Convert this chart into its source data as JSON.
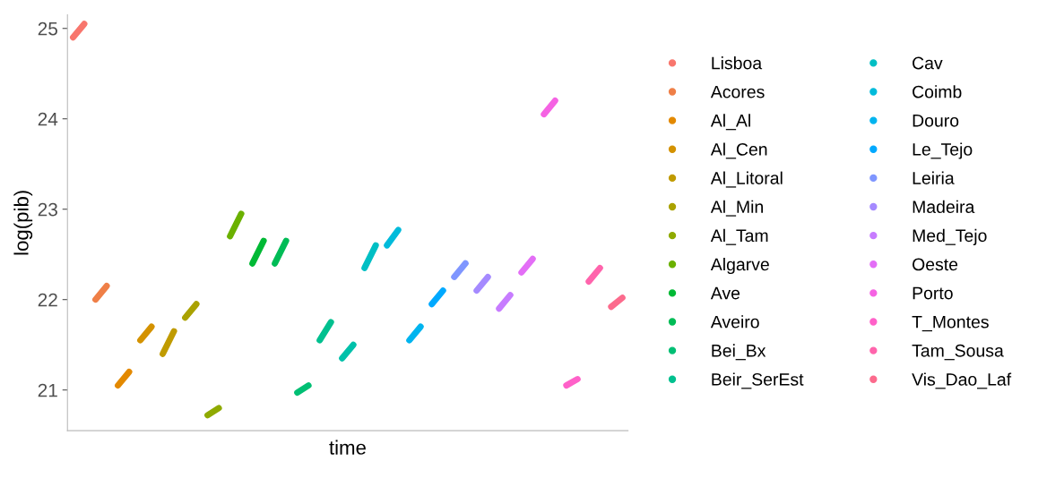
{
  "chart_data": {
    "type": "line",
    "xlabel": "time",
    "ylabel": "log(pib)",
    "ylim": [
      20.55,
      25.15
    ],
    "yticks": [
      21,
      22,
      23,
      24,
      25
    ],
    "tick_labels": "y",
    "grid": false,
    "legend": "right",
    "categories": [
      null,
      null,
      null,
      null,
      null,
      null,
      null,
      null,
      null,
      null,
      null,
      null,
      null,
      null,
      null,
      null,
      null,
      null,
      null,
      null,
      null,
      null,
      null,
      null,
      null,
      null,
      null,
      null,
      null,
      null,
      null,
      null,
      null,
      null,
      null,
      null,
      null,
      null,
      null,
      null,
      null,
      null,
      null,
      null,
      null,
      null,
      null,
      null,
      null,
      null
    ],
    "series": [
      {
        "name": "Lisboa",
        "color": "#f8766d",
        "values": [
          24.9,
          25.05,
          null,
          null,
          null,
          null,
          null,
          null,
          null,
          null,
          null,
          null,
          null,
          null,
          null,
          null,
          null,
          null,
          null,
          null,
          null,
          null,
          null,
          null,
          null,
          null,
          null,
          null,
          null,
          null,
          null,
          null,
          null,
          null,
          null,
          null,
          null,
          null,
          null,
          null,
          null,
          null,
          null,
          null,
          null,
          null,
          null,
          null,
          null,
          null
        ]
      },
      {
        "name": "Acores",
        "color": "#ef7f47",
        "values": [
          null,
          null,
          22.0,
          22.15,
          null,
          null,
          null,
          null,
          null,
          null,
          null,
          null,
          null,
          null,
          null,
          null,
          null,
          null,
          null,
          null,
          null,
          null,
          null,
          null,
          null,
          null,
          null,
          null,
          null,
          null,
          null,
          null,
          null,
          null,
          null,
          null,
          null,
          null,
          null,
          null,
          null,
          null,
          null,
          null,
          null,
          null,
          null,
          null,
          null,
          null
        ]
      },
      {
        "name": "Al_Al",
        "color": "#e38900",
        "values": [
          null,
          null,
          null,
          null,
          21.05,
          21.2,
          null,
          null,
          null,
          null,
          null,
          null,
          null,
          null,
          null,
          null,
          null,
          null,
          null,
          null,
          null,
          null,
          null,
          null,
          null,
          null,
          null,
          null,
          null,
          null,
          null,
          null,
          null,
          null,
          null,
          null,
          null,
          null,
          null,
          null,
          null,
          null,
          null,
          null,
          null,
          null,
          null,
          null,
          null,
          null
        ]
      },
      {
        "name": "Al_Cen",
        "color": "#d49200",
        "values": [
          null,
          null,
          null,
          null,
          null,
          null,
          21.55,
          21.7,
          null,
          null,
          null,
          null,
          null,
          null,
          null,
          null,
          null,
          null,
          null,
          null,
          null,
          null,
          null,
          null,
          null,
          null,
          null,
          null,
          null,
          null,
          null,
          null,
          null,
          null,
          null,
          null,
          null,
          null,
          null,
          null,
          null,
          null,
          null,
          null,
          null,
          null,
          null,
          null,
          null,
          null
        ]
      },
      {
        "name": "Al_Litoral",
        "color": "#c09b00",
        "values": [
          null,
          null,
          null,
          null,
          null,
          null,
          null,
          null,
          21.4,
          21.65,
          null,
          null,
          null,
          null,
          null,
          null,
          null,
          null,
          null,
          null,
          null,
          null,
          null,
          null,
          null,
          null,
          null,
          null,
          null,
          null,
          null,
          null,
          null,
          null,
          null,
          null,
          null,
          null,
          null,
          null,
          null,
          null,
          null,
          null,
          null,
          null,
          null,
          null,
          null,
          null
        ]
      },
      {
        "name": "Al_Min",
        "color": "#aaa200",
        "values": [
          null,
          null,
          null,
          null,
          null,
          null,
          null,
          null,
          null,
          null,
          21.8,
          21.95,
          null,
          null,
          null,
          null,
          null,
          null,
          null,
          null,
          null,
          null,
          null,
          null,
          null,
          null,
          null,
          null,
          null,
          null,
          null,
          null,
          null,
          null,
          null,
          null,
          null,
          null,
          null,
          null,
          null,
          null,
          null,
          null,
          null,
          null,
          null,
          null,
          null,
          null
        ]
      },
      {
        "name": "Al_Tam",
        "color": "#8faa00",
        "values": [
          null,
          null,
          null,
          null,
          null,
          null,
          null,
          null,
          null,
          null,
          null,
          null,
          20.72,
          20.8,
          null,
          null,
          null,
          null,
          null,
          null,
          null,
          null,
          null,
          null,
          null,
          null,
          null,
          null,
          null,
          null,
          null,
          null,
          null,
          null,
          null,
          null,
          null,
          null,
          null,
          null,
          null,
          null,
          null,
          null,
          null,
          null,
          null,
          null,
          null,
          null
        ]
      },
      {
        "name": "Algarve",
        "color": "#6bb100",
        "values": [
          null,
          null,
          null,
          null,
          null,
          null,
          null,
          null,
          null,
          null,
          null,
          null,
          null,
          null,
          22.7,
          22.95,
          null,
          null,
          null,
          null,
          null,
          null,
          null,
          null,
          null,
          null,
          null,
          null,
          null,
          null,
          null,
          null,
          null,
          null,
          null,
          null,
          null,
          null,
          null,
          null,
          null,
          null,
          null,
          null,
          null,
          null,
          null,
          null,
          null,
          null
        ]
      },
      {
        "name": "Ave",
        "color": "#00b935",
        "values": [
          null,
          null,
          null,
          null,
          null,
          null,
          null,
          null,
          null,
          null,
          null,
          null,
          null,
          null,
          null,
          null,
          22.4,
          22.65,
          null,
          null,
          null,
          null,
          null,
          null,
          null,
          null,
          null,
          null,
          null,
          null,
          null,
          null,
          null,
          null,
          null,
          null,
          null,
          null,
          null,
          null,
          null,
          null,
          null,
          null,
          null,
          null,
          null,
          null,
          null,
          null
        ]
      },
      {
        "name": "Aveiro",
        "color": "#00bc56",
        "values": [
          null,
          null,
          null,
          null,
          null,
          null,
          null,
          null,
          null,
          null,
          null,
          null,
          null,
          null,
          null,
          null,
          null,
          null,
          22.4,
          22.65,
          null,
          null,
          null,
          null,
          null,
          null,
          null,
          null,
          null,
          null,
          null,
          null,
          null,
          null,
          null,
          null,
          null,
          null,
          null,
          null,
          null,
          null,
          null,
          null,
          null,
          null,
          null,
          null,
          null,
          null
        ]
      },
      {
        "name": "Bei_Bx",
        "color": "#00bf74",
        "values": [
          null,
          null,
          null,
          null,
          null,
          null,
          null,
          null,
          null,
          null,
          null,
          null,
          null,
          null,
          null,
          null,
          null,
          null,
          null,
          null,
          20.97,
          21.05,
          null,
          null,
          null,
          null,
          null,
          null,
          null,
          null,
          null,
          null,
          null,
          null,
          null,
          null,
          null,
          null,
          null,
          null,
          null,
          null,
          null,
          null,
          null,
          null,
          null,
          null,
          null,
          null
        ]
      },
      {
        "name": "Beir_SerEst",
        "color": "#00c08f",
        "values": [
          null,
          null,
          null,
          null,
          null,
          null,
          null,
          null,
          null,
          null,
          null,
          null,
          null,
          null,
          null,
          null,
          null,
          null,
          null,
          null,
          null,
          null,
          21.55,
          21.75,
          null,
          null,
          null,
          null,
          null,
          null,
          null,
          null,
          null,
          null,
          null,
          null,
          null,
          null,
          null,
          null,
          null,
          null,
          null,
          null,
          null,
          null,
          null,
          null,
          null,
          null
        ]
      },
      {
        "color": "#00c1aa",
        "values": [
          null,
          null,
          null,
          null,
          null,
          null,
          null,
          null,
          null,
          null,
          null,
          null,
          null,
          null,
          null,
          null,
          null,
          null,
          null,
          null,
          null,
          null,
          null,
          null,
          21.35,
          21.5,
          null,
          null,
          null,
          null,
          null,
          null,
          null,
          null,
          null,
          null,
          null,
          null,
          null,
          null,
          null,
          null,
          null,
          null,
          null,
          null,
          null,
          null,
          null,
          null
        ]
      },
      {
        "name": "Cav",
        "color": "#00bfc4",
        "values": [
          null,
          null,
          null,
          null,
          null,
          null,
          null,
          null,
          null,
          null,
          null,
          null,
          null,
          null,
          null,
          null,
          null,
          null,
          null,
          null,
          null,
          null,
          null,
          null,
          null,
          null,
          22.35,
          22.6,
          null,
          null,
          null,
          null,
          null,
          null,
          null,
          null,
          null,
          null,
          null,
          null,
          null,
          null,
          null,
          null,
          null,
          null,
          null,
          null,
          null,
          null
        ]
      },
      {
        "name": "Coimb",
        "color": "#00bbdb",
        "values": [
          null,
          null,
          null,
          null,
          null,
          null,
          null,
          null,
          null,
          null,
          null,
          null,
          null,
          null,
          null,
          null,
          null,
          null,
          null,
          null,
          null,
          null,
          null,
          null,
          null,
          null,
          null,
          null,
          22.6,
          22.77,
          null,
          null,
          null,
          null,
          null,
          null,
          null,
          null,
          null,
          null,
          null,
          null,
          null,
          null,
          null,
          null,
          null,
          null,
          null,
          null
        ]
      },
      {
        "name": "Douro",
        "color": "#00b4ef",
        "values": [
          null,
          null,
          null,
          null,
          null,
          null,
          null,
          null,
          null,
          null,
          null,
          null,
          null,
          null,
          null,
          null,
          null,
          null,
          null,
          null,
          null,
          null,
          null,
          null,
          null,
          null,
          null,
          null,
          null,
          null,
          21.55,
          21.7,
          null,
          null,
          null,
          null,
          null,
          null,
          null,
          null,
          null,
          null,
          null,
          null,
          null,
          null,
          null,
          null,
          null,
          null
        ]
      },
      {
        "name": "Le_Tejo",
        "color": "#00a9ff",
        "values": [
          null,
          null,
          null,
          null,
          null,
          null,
          null,
          null,
          null,
          null,
          null,
          null,
          null,
          null,
          null,
          null,
          null,
          null,
          null,
          null,
          null,
          null,
          null,
          null,
          null,
          null,
          null,
          null,
          null,
          null,
          null,
          null,
          21.95,
          22.1,
          null,
          null,
          null,
          null,
          null,
          null,
          null,
          null,
          null,
          null,
          null,
          null,
          null,
          null,
          null,
          null
        ]
      },
      {
        "name": "Leiria",
        "color": "#7f96ff",
        "values": [
          null,
          null,
          null,
          null,
          null,
          null,
          null,
          null,
          null,
          null,
          null,
          null,
          null,
          null,
          null,
          null,
          null,
          null,
          null,
          null,
          null,
          null,
          null,
          null,
          null,
          null,
          null,
          null,
          null,
          null,
          null,
          null,
          null,
          null,
          22.25,
          22.4,
          null,
          null,
          null,
          null,
          null,
          null,
          null,
          null,
          null,
          null,
          null,
          null,
          null,
          null
        ]
      },
      {
        "name": "Madeira",
        "color": "#a58aff",
        "values": [
          null,
          null,
          null,
          null,
          null,
          null,
          null,
          null,
          null,
          null,
          null,
          null,
          null,
          null,
          null,
          null,
          null,
          null,
          null,
          null,
          null,
          null,
          null,
          null,
          null,
          null,
          null,
          null,
          null,
          null,
          null,
          null,
          null,
          null,
          null,
          null,
          22.1,
          22.25,
          null,
          null,
          null,
          null,
          null,
          null,
          null,
          null,
          null,
          null,
          null,
          null
        ]
      },
      {
        "name": "Med_Tejo",
        "color": "#c77cff",
        "values": [
          null,
          null,
          null,
          null,
          null,
          null,
          null,
          null,
          null,
          null,
          null,
          null,
          null,
          null,
          null,
          null,
          null,
          null,
          null,
          null,
          null,
          null,
          null,
          null,
          null,
          null,
          null,
          null,
          null,
          null,
          null,
          null,
          null,
          null,
          null,
          null,
          null,
          null,
          21.9,
          22.05,
          null,
          null,
          null,
          null,
          null,
          null,
          null,
          null,
          null,
          null
        ]
      },
      {
        "name": "Oeste",
        "color": "#e36ef6",
        "values": [
          null,
          null,
          null,
          null,
          null,
          null,
          null,
          null,
          null,
          null,
          null,
          null,
          null,
          null,
          null,
          null,
          null,
          null,
          null,
          null,
          null,
          null,
          null,
          null,
          null,
          null,
          null,
          null,
          null,
          null,
          null,
          null,
          null,
          null,
          null,
          null,
          null,
          null,
          null,
          null,
          22.3,
          22.45,
          null,
          null,
          null,
          null,
          null,
          null,
          null,
          null
        ]
      },
      {
        "name": "Porto",
        "color": "#f563e3",
        "values": [
          null,
          null,
          null,
          null,
          null,
          null,
          null,
          null,
          null,
          null,
          null,
          null,
          null,
          null,
          null,
          null,
          null,
          null,
          null,
          null,
          null,
          null,
          null,
          null,
          null,
          null,
          null,
          null,
          null,
          null,
          null,
          null,
          null,
          null,
          null,
          null,
          null,
          null,
          null,
          null,
          null,
          null,
          24.05,
          24.2,
          null,
          null,
          null,
          null,
          null,
          null
        ]
      },
      {
        "name": "T_Montes",
        "color": "#ff61c9",
        "values": [
          null,
          null,
          null,
          null,
          null,
          null,
          null,
          null,
          null,
          null,
          null,
          null,
          null,
          null,
          null,
          null,
          null,
          null,
          null,
          null,
          null,
          null,
          null,
          null,
          null,
          null,
          null,
          null,
          null,
          null,
          null,
          null,
          null,
          null,
          null,
          null,
          null,
          null,
          null,
          null,
          null,
          null,
          null,
          null,
          21.05,
          21.12,
          null,
          null,
          null,
          null
        ]
      },
      {
        "name": "Tam_Sousa",
        "color": "#ff64ac",
        "values": [
          null,
          null,
          null,
          null,
          null,
          null,
          null,
          null,
          null,
          null,
          null,
          null,
          null,
          null,
          null,
          null,
          null,
          null,
          null,
          null,
          null,
          null,
          null,
          null,
          null,
          null,
          null,
          null,
          null,
          null,
          null,
          null,
          null,
          null,
          null,
          null,
          null,
          null,
          null,
          null,
          null,
          null,
          null,
          null,
          null,
          null,
          22.2,
          22.35,
          null,
          null
        ]
      },
      {
        "name": "Vis_Dao_Laf",
        "color": "#fc6b8d",
        "values": [
          null,
          null,
          null,
          null,
          null,
          null,
          null,
          null,
          null,
          null,
          null,
          null,
          null,
          null,
          null,
          null,
          null,
          null,
          null,
          null,
          null,
          null,
          null,
          null,
          null,
          null,
          null,
          null,
          null,
          null,
          null,
          null,
          null,
          null,
          null,
          null,
          null,
          null,
          null,
          null,
          null,
          null,
          null,
          null,
          null,
          null,
          null,
          null,
          21.92,
          22.02
        ]
      }
    ]
  }
}
